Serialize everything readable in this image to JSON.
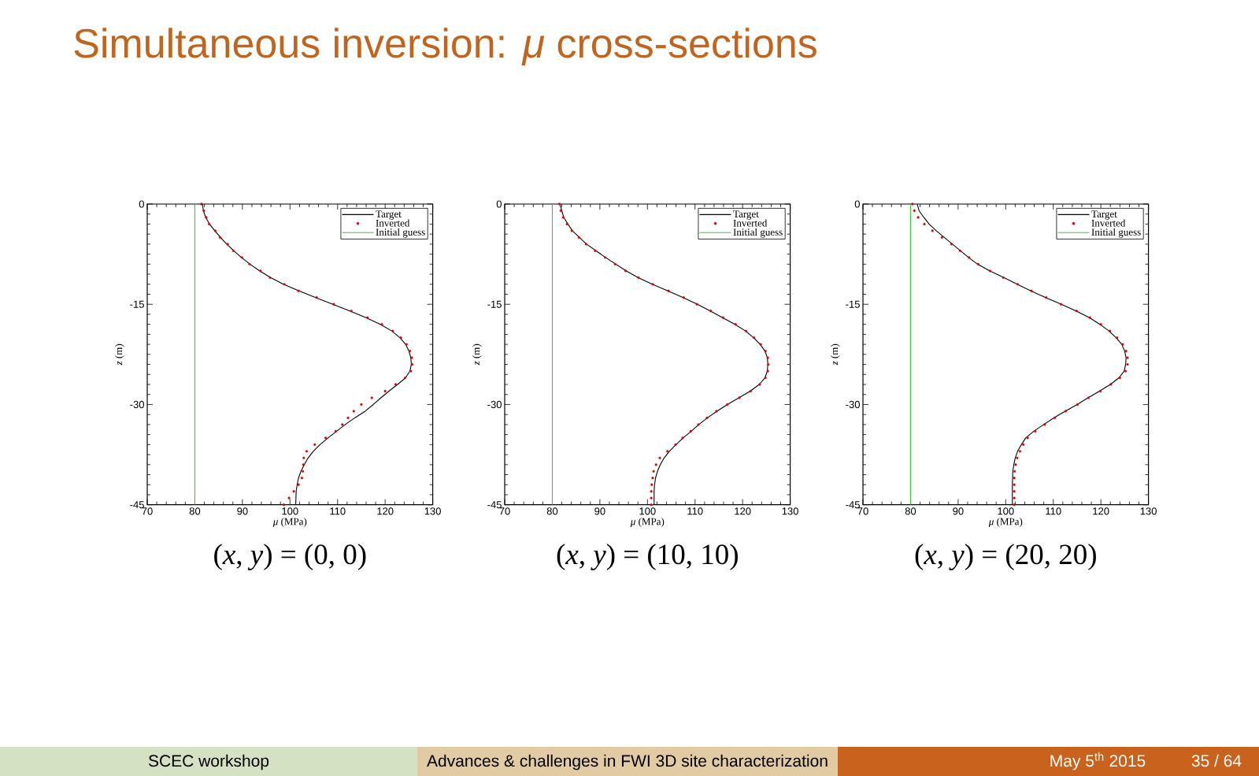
{
  "chart_data": [
    {
      "type": "other",
      "title": "Simultaneous inversion: *μ* cross-sections"
    },
    {
      "type": "line",
      "title": "(*x*, *y*) = (0, 0)",
      "xlabel": "*μ* (MPa)",
      "ylabel": "*z* (m)",
      "xlim": [
        70,
        130
      ],
      "xticks": [
        70,
        80,
        90,
        100,
        110,
        120,
        130
      ],
      "ylim": [
        -45,
        0
      ],
      "yticks": [
        -45,
        -30,
        -15,
        0
      ],
      "legend": "top right",
      "series": [
        {
          "name": "Target",
          "type": "line",
          "color": "#000000",
          "x": [
            81.6,
            81.8,
            82.3,
            83.1,
            84.2,
            85.4,
            86.7,
            88.2,
            89.8,
            91.6,
            93.6,
            95.9,
            98.6,
            101.9,
            105.4,
            109.0,
            112.6,
            116.0,
            119.0,
            121.4,
            123.1,
            124.3,
            125.0,
            125.4,
            125.5,
            125.2,
            124.3,
            122.6,
            120.8,
            119.1,
            117.5,
            115.8,
            113.6,
            111.6,
            109.8,
            108.0,
            106.3,
            104.9,
            103.8,
            103.0,
            102.3,
            101.8,
            101.5,
            101.3,
            101.2
          ],
          "values": [
            0,
            -1,
            -2,
            -3,
            -4,
            -5,
            -6,
            -7,
            -8,
            -9,
            -10,
            -11,
            -12,
            -13,
            -14,
            -15,
            -16,
            -17,
            -18,
            -19,
            -20,
            -21,
            -22,
            -23,
            -24,
            -25,
            -26,
            -27,
            -28,
            -29,
            -30,
            -31,
            -32,
            -33,
            -34,
            -35,
            -36,
            -37,
            -38,
            -39,
            -40,
            -41,
            -42,
            -43,
            -45
          ]
        },
        {
          "name": "Inverted",
          "type": "scatter",
          "marker": "circle",
          "color": "#dd0000",
          "x": [
            81.4,
            81.9,
            82.4,
            83.0,
            84.3,
            85.3,
            86.9,
            88.1,
            89.9,
            91.5,
            93.8,
            95.8,
            98.8,
            101.8,
            105.6,
            109.2,
            112.9,
            116.3,
            119.3,
            121.6,
            123.3,
            124.5,
            125.2,
            125.6,
            125.7,
            125.4,
            124.2,
            122.2,
            120.0,
            117.2,
            115.0,
            113.4,
            112.2,
            111.0,
            109.6,
            107.5,
            105.2,
            103.5,
            102.9,
            102.8,
            102.7,
            102.5,
            101.8,
            100.8,
            99.8,
            98.7
          ],
          "values": [
            0,
            -1,
            -2,
            -3,
            -4,
            -5,
            -6,
            -7,
            -8,
            -9,
            -10,
            -11,
            -12,
            -13,
            -14,
            -15,
            -16,
            -17,
            -18,
            -19,
            -20,
            -21,
            -22,
            -23,
            -24,
            -25,
            -26,
            -27,
            -28,
            -29,
            -30,
            -31,
            -32,
            -33,
            -34,
            -35,
            -36,
            -37,
            -38,
            -39,
            -40,
            -41,
            -42,
            -43,
            -44,
            -45
          ]
        },
        {
          "name": "Initial guess",
          "type": "line",
          "color": "#33cc33",
          "x": [
            80,
            80
          ],
          "values": [
            0,
            -45
          ]
        }
      ]
    },
    {
      "type": "line",
      "title": "(*x*, *y*) = (10, 10)",
      "xlabel": "*μ* (MPa)",
      "ylabel": "*z* (m)",
      "xlim": [
        70,
        130
      ],
      "xticks": [
        70,
        80,
        90,
        100,
        110,
        120,
        130
      ],
      "ylim": [
        -45,
        0
      ],
      "yticks": [
        -45,
        -30,
        -15,
        0
      ],
      "legend": "top right",
      "series": [
        {
          "name": "Target",
          "type": "line",
          "color": "#000000",
          "x": [
            81.6,
            82.4,
            84.2,
            87.2,
            91.2,
            95.5,
            98.0,
            101.0,
            104.3,
            107.5,
            110.5,
            113.2,
            115.8,
            118.4,
            120.6,
            122.3,
            123.7,
            124.7,
            125.2,
            125.3,
            125.2,
            124.7,
            123.5,
            121.6,
            119.2,
            116.8,
            114.6,
            112.6,
            110.8,
            109.2,
            107.5,
            106.0,
            104.6,
            103.5,
            102.7,
            102.1,
            101.7,
            101.5,
            101.4,
            101.4
          ],
          "values": [
            0,
            -2,
            -4,
            -6,
            -8,
            -10,
            -11,
            -12,
            -13,
            -14,
            -15,
            -16,
            -17,
            -18,
            -19,
            -20,
            -21,
            -22,
            -23,
            -24,
            -25,
            -26,
            -27,
            -28,
            -29,
            -30,
            -31,
            -32,
            -33,
            -34,
            -35,
            -36,
            -37,
            -38,
            -39,
            -40,
            -41,
            -42,
            -43,
            -45
          ]
        },
        {
          "name": "Inverted",
          "type": "scatter",
          "marker": "circle",
          "color": "#dd0000",
          "x": [
            81.5,
            81.8,
            82.3,
            83.1,
            84.1,
            85.6,
            87.1,
            89.0,
            91.1,
            93.2,
            95.4,
            98.1,
            101.1,
            104.4,
            107.6,
            110.4,
            113.3,
            115.9,
            118.5,
            120.7,
            122.4,
            123.8,
            124.8,
            125.3,
            125.4,
            125.3,
            124.8,
            123.6,
            121.7,
            119.3,
            116.8,
            114.5,
            112.5,
            110.7,
            109.1,
            107.4,
            105.9,
            104.2,
            102.6,
            101.8,
            101.3,
            101.1,
            100.9,
            100.8,
            100.8,
            100.8
          ],
          "values": [
            0,
            -1,
            -2,
            -3,
            -4,
            -5,
            -6,
            -7,
            -8,
            -9,
            -10,
            -11,
            -12,
            -13,
            -14,
            -15,
            -16,
            -17,
            -18,
            -19,
            -20,
            -21,
            -22,
            -23,
            -24,
            -25,
            -26,
            -27,
            -28,
            -29,
            -30,
            -31,
            -32,
            -33,
            -34,
            -35,
            -36,
            -37,
            -38,
            -39,
            -40,
            -41,
            -42,
            -43,
            -44,
            -45
          ]
        },
        {
          "name": "Initial guess",
          "type": "line",
          "color": "#33cc33",
          "x": [
            80,
            80
          ],
          "values": [
            0,
            -45
          ]
        }
      ]
    },
    {
      "type": "line",
      "title": "(*x*, *y*) = (20, 20)",
      "xlabel": "*μ* (MPa)",
      "ylabel": "*z* (m)",
      "xlim": [
        70,
        130
      ],
      "xticks": [
        70,
        80,
        90,
        100,
        110,
        120,
        130
      ],
      "ylim": [
        -45,
        0
      ],
      "yticks": [
        -45,
        -30,
        -15,
        0
      ],
      "legend": "top right",
      "series": [
        {
          "name": "Target",
          "type": "line",
          "color": "#000000",
          "x": [
            81.4,
            81.8,
            82.8,
            83.9,
            85.4,
            87.1,
            88.8,
            90.5,
            92.2,
            94.1,
            96.6,
            99.6,
            102.4,
            105.3,
            108.4,
            111.7,
            114.8,
            117.6,
            119.8,
            121.7,
            123.2,
            124.4,
            125.0,
            125.3,
            125.2,
            124.9,
            123.8,
            122.0,
            119.7,
            117.3,
            115.0,
            112.5,
            110.1,
            108.0,
            105.9,
            104.2,
            103.3,
            102.5,
            102.0,
            101.7,
            101.5,
            101.4,
            101.4
          ],
          "values": [
            0,
            -1,
            -2,
            -3,
            -4,
            -5,
            -6,
            -7,
            -8,
            -9,
            -10,
            -11,
            -12,
            -13,
            -14,
            -15,
            -16,
            -17,
            -18,
            -19,
            -20,
            -21,
            -22,
            -23,
            -24,
            -25,
            -26,
            -27,
            -28,
            -29,
            -30,
            -31,
            -32,
            -33,
            -34,
            -35,
            -36,
            -37,
            -38,
            -39,
            -40,
            -42,
            -45
          ]
        },
        {
          "name": "Inverted",
          "type": "scatter",
          "marker": "circle",
          "color": "#dd0000",
          "x": [
            80.4,
            80.8,
            81.6,
            82.9,
            84.6,
            86.6,
            88.6,
            90.4,
            92.3,
            94.2,
            96.7,
            99.5,
            102.5,
            105.4,
            108.5,
            111.6,
            114.9,
            117.7,
            120.0,
            121.9,
            123.4,
            124.6,
            125.3,
            125.6,
            125.6,
            125.2,
            124.0,
            122.1,
            119.9,
            117.4,
            115.1,
            112.6,
            110.3,
            108.2,
            106.2,
            104.6,
            103.7,
            103.0,
            102.4,
            102.1,
            101.9,
            101.8,
            101.8,
            101.8,
            101.8,
            101.8
          ],
          "values": [
            0,
            -1,
            -2,
            -3,
            -4,
            -5,
            -6,
            -7,
            -8,
            -9,
            -10,
            -11,
            -12,
            -13,
            -14,
            -15,
            -16,
            -17,
            -18,
            -19,
            -20,
            -21,
            -22,
            -23,
            -24,
            -25,
            -26,
            -27,
            -28,
            -29,
            -30,
            -31,
            -32,
            -33,
            -34,
            -35,
            -36,
            -37,
            -38,
            -39,
            -40,
            -41,
            -42,
            -43,
            -44,
            -45
          ]
        },
        {
          "name": "Initial guess",
          "type": "line",
          "color": "#33cc33",
          "x": [
            80,
            80
          ],
          "values": [
            0,
            -45
          ]
        }
      ]
    },
    {
      "type": "other",
      "annotations": [
        "SCEC workshop",
        "Advances & challenges in FWI 3D site characterization",
        "May 5$^{th}$ 2015",
        "35 / 64"
      ]
    }
  ]
}
